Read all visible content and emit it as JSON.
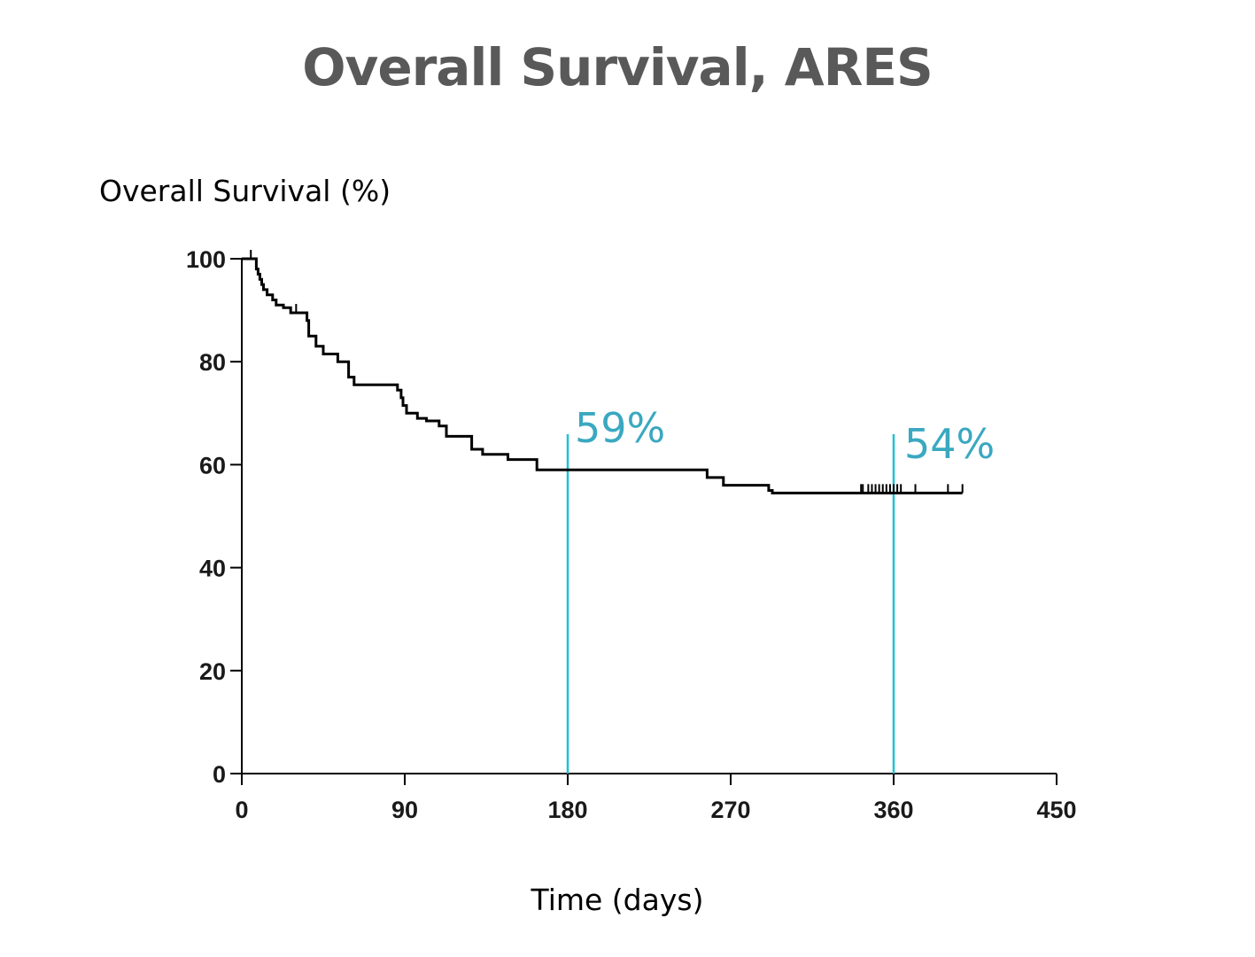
{
  "chart_data": {
    "type": "line",
    "subtype": "kaplan-meier",
    "title": "Overall Survival, ARES",
    "xlabel": "Time (days)",
    "ylabel": "Overall Survival (%)",
    "xlim": [
      0,
      450
    ],
    "ylim": [
      0,
      100
    ],
    "x_ticks": [
      0,
      90,
      180,
      270,
      360,
      450
    ],
    "y_ticks": [
      0,
      20,
      40,
      60,
      80,
      100
    ],
    "grid": false,
    "line_color": "#000000",
    "marker_color": "#1ec3d3",
    "series": [
      {
        "name": "Overall Survival",
        "steps": [
          [
            0,
            100
          ],
          [
            8,
            98
          ],
          [
            9,
            97
          ],
          [
            10,
            96
          ],
          [
            11,
            95
          ],
          [
            12,
            94
          ],
          [
            14,
            93
          ],
          [
            17,
            92
          ],
          [
            19,
            91
          ],
          [
            23,
            90.5
          ],
          [
            27,
            89.5
          ],
          [
            36,
            88
          ],
          [
            37,
            85
          ],
          [
            41,
            83
          ],
          [
            45,
            81.5
          ],
          [
            53,
            80
          ],
          [
            59,
            77
          ],
          [
            62,
            75.5
          ],
          [
            86,
            74.5
          ],
          [
            88,
            73
          ],
          [
            89,
            71.5
          ],
          [
            91,
            70
          ],
          [
            97,
            69
          ],
          [
            102,
            68.5
          ],
          [
            109,
            67.5
          ],
          [
            113,
            65.5
          ],
          [
            127,
            63
          ],
          [
            133,
            62
          ],
          [
            147,
            61
          ],
          [
            163,
            59
          ],
          [
            257,
            57.5
          ],
          [
            266,
            56
          ],
          [
            291,
            55
          ],
          [
            293,
            54.5
          ],
          [
            398,
            54.5
          ]
        ],
        "censor_times": [
          5,
          30,
          342,
          343,
          346,
          348,
          350,
          352,
          354,
          356,
          358,
          360,
          362,
          364,
          372,
          390,
          398
        ]
      }
    ],
    "markers": [
      {
        "x": 180,
        "label": "59%",
        "value": 59
      },
      {
        "x": 360,
        "label": "54%",
        "value": 54
      }
    ]
  }
}
